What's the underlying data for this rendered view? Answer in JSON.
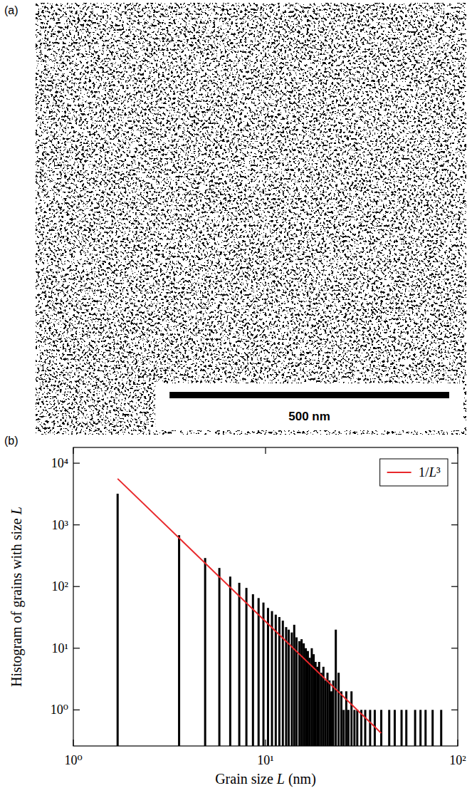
{
  "chart_data": {
    "type": "bar",
    "panel_label": "(b)",
    "x_label": "Grain size L (nm)",
    "y_label": "Histogram of grains with size L",
    "log": true,
    "grid": false,
    "legend": "upper right",
    "xlim": [
      1,
      100
    ],
    "xticks": [
      {
        "value": 1,
        "label": "10⁰"
      },
      {
        "value": 10,
        "label": "10¹"
      },
      {
        "value": 100,
        "label": "10²"
      }
    ],
    "ylim": [
      0.26,
      18000
    ],
    "yticks": [
      {
        "value": 1,
        "label": "10⁰"
      },
      {
        "value": 10,
        "label": "10¹"
      },
      {
        "value": 100,
        "label": "10²"
      },
      {
        "value": 1000,
        "label": "10³"
      },
      {
        "value": 10000,
        "label": "10⁴"
      }
    ],
    "series": [
      {
        "type": "bar",
        "color": "#000000",
        "x": [
          1.7,
          3.55,
          4.85,
          5.75,
          6.55,
          7.3,
          7.95,
          8.6,
          9.2,
          9.75,
          10.3,
          10.8,
          11.3,
          11.8,
          12.3,
          12.8,
          13.2,
          13.7,
          14.1,
          14.5,
          15.0,
          15.4,
          15.8,
          16.2,
          16.6,
          17.0,
          17.4,
          17.8,
          18.2,
          18.6,
          19.0,
          19.5,
          20.0,
          20.5,
          21.0,
          21.5,
          22.0,
          22.5,
          23.2,
          24.0,
          24.8,
          25.5,
          26.3,
          27.0,
          28.0,
          29.0,
          30.0,
          31.5,
          33.0,
          35.0,
          37.0,
          40.0,
          44.0,
          47.0,
          51.0,
          54.0,
          60.0,
          64.0,
          68.0,
          74.0,
          82.0
        ],
        "values": [
          3200,
          680,
          290,
          200,
          145,
          115,
          95,
          75,
          65,
          55,
          45,
          40,
          35,
          32,
          28,
          22,
          20,
          18,
          24,
          15,
          13,
          14,
          12,
          10,
          9,
          7,
          10,
          8,
          6,
          5,
          6,
          4,
          5,
          3,
          4,
          3,
          2,
          3,
          20,
          4,
          2,
          1,
          2,
          1,
          2,
          1,
          1,
          1,
          1,
          1,
          1,
          1,
          1,
          1,
          1,
          1,
          1,
          1,
          1,
          1,
          1
        ]
      },
      {
        "name": "1/L³",
        "type": "line",
        "color": "#e8282b",
        "line_style": "solid",
        "x": [
          1.7,
          40
        ],
        "values": [
          5600,
          0.42
        ]
      }
    ]
  },
  "micrograph": {
    "panel_label": "(a)",
    "width_nm": 770,
    "scale_bar": {
      "value": 500,
      "label": "500 nm"
    }
  }
}
